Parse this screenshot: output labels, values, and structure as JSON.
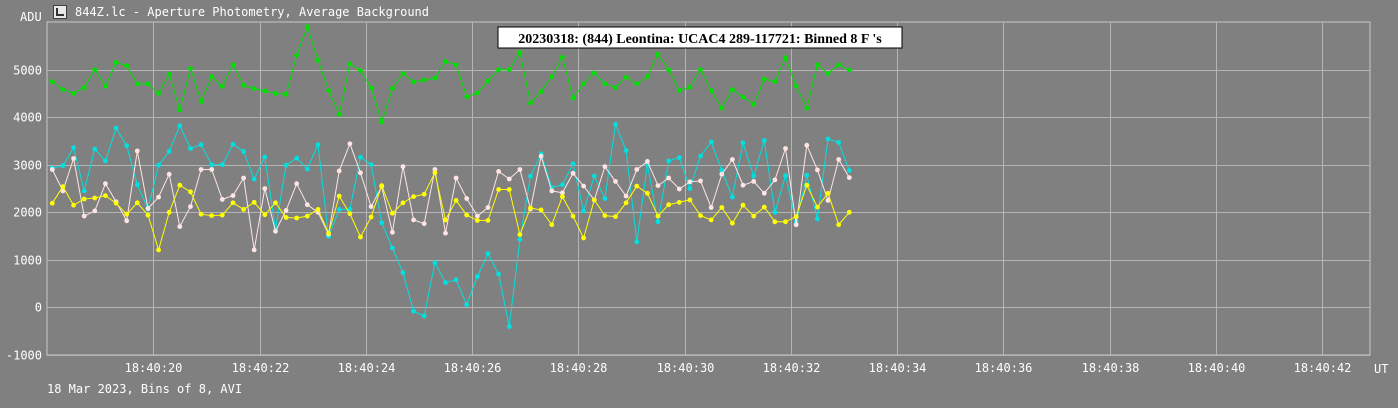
{
  "window": {
    "title": "844Z.lc - Aperture Photometry, Average Background",
    "icon": "chart-window-icon"
  },
  "footer": "18 Mar 2023, Bins of 8, AVI",
  "chart_data": {
    "type": "line",
    "title": "20230318: (844) Leontina: UCAC4 289-117721: Binned 8 F 's",
    "ylabel": "ADU",
    "xlabel": "UT",
    "ylim": [
      -1000,
      6000
    ],
    "y_ticks": [
      -1000,
      0,
      1000,
      2000,
      3000,
      4000,
      5000
    ],
    "x_ticks": [
      "18:40:20",
      "18:40:22",
      "18:40:24",
      "18:40:26",
      "18:40:28",
      "18:40:30",
      "18:40:32",
      "18:40:34",
      "18:40:36",
      "18:40:38",
      "18:40:40",
      "18:40:42"
    ],
    "x_tick_seconds": [
      20,
      22,
      24,
      26,
      28,
      30,
      32,
      34,
      36,
      38,
      40,
      42
    ],
    "xlim_seconds": [
      18.0,
      42.9
    ],
    "grid": true,
    "x_start_seconds": 18.1,
    "x_step_seconds": 0.2,
    "series": [
      {
        "color": "#00e000",
        "values": [
          4750,
          4580,
          4500,
          4620,
          5000,
          4650,
          5150,
          5080,
          4700,
          4700,
          4500,
          4900,
          4150,
          5020,
          4330,
          4850,
          4650,
          5100,
          4670,
          4600,
          4550,
          4500,
          4480,
          5300,
          5900,
          5200,
          4560,
          4060,
          5120,
          4980,
          4620,
          3900,
          4600,
          4920,
          4740,
          4780,
          4820,
          5170,
          5100,
          4430,
          4510,
          4760,
          5000,
          5000,
          5360,
          4300,
          4540,
          4850,
          5260,
          4400,
          4700,
          4930,
          4700,
          4620,
          4840,
          4700,
          4850,
          5320,
          4990,
          4560,
          4630,
          5000,
          4560,
          4190,
          4580,
          4420,
          4270,
          4800,
          4750,
          5250,
          4650,
          4190,
          5100,
          4920,
          5100,
          4990
        ]
      },
      {
        "color": "#00e0e0",
        "values": [
          2930,
          2980,
          3360,
          2450,
          3330,
          3080,
          3770,
          3400,
          2580,
          2070,
          2990,
          3280,
          3820,
          3340,
          3420,
          3000,
          3000,
          3430,
          3280,
          2700,
          3160,
          1650,
          2990,
          3140,
          2910,
          3420,
          1490,
          2060,
          2060,
          3160,
          3000,
          1780,
          1250,
          730,
          -80,
          -180,
          940,
          520,
          580,
          60,
          650,
          1130,
          700,
          -400,
          1430,
          2760,
          3230,
          2520,
          2580,
          3020,
          2030,
          2760,
          2290,
          3850,
          3300,
          1380,
          3000,
          1800,
          3080,
          3150,
          2500,
          3180,
          3480,
          2880,
          2320,
          3460,
          2760,
          3510,
          2000,
          2770,
          1800,
          2780,
          1860,
          3540,
          3470,
          2880
        ]
      },
      {
        "color": "#ffe4e4",
        "values": [
          2900,
          2450,
          3130,
          1920,
          2030,
          2600,
          2220,
          1820,
          3290,
          2080,
          2320,
          2800,
          1700,
          2120,
          2900,
          2900,
          2270,
          2350,
          2720,
          1210,
          2500,
          1600,
          2040,
          2600,
          2160,
          2000,
          1540,
          2870,
          3440,
          2830,
          2120,
          2540,
          1580,
          2960,
          1840,
          1760,
          2900,
          1560,
          2720,
          2290,
          1920,
          2100,
          2860,
          2700,
          2900,
          2070,
          3180,
          2450,
          2410,
          2820,
          2550,
          2260,
          2960,
          2650,
          2340,
          2900,
          3070,
          2560,
          2720,
          2490,
          2640,
          2660,
          2100,
          2800,
          3110,
          2570,
          2650,
          2400,
          2680,
          3340,
          1740,
          3410,
          2890,
          2250,
          3110,
          2730
        ]
      },
      {
        "color": "#ffff00",
        "values": [
          2190,
          2540,
          2150,
          2280,
          2300,
          2350,
          2190,
          1960,
          2200,
          1940,
          1210,
          2000,
          2570,
          2430,
          1960,
          1930,
          1940,
          2200,
          2060,
          2210,
          1950,
          2200,
          1890,
          1880,
          1920,
          2060,
          1560,
          2340,
          1970,
          1480,
          1900,
          2560,
          1980,
          2200,
          2330,
          2380,
          2830,
          1840,
          2250,
          1940,
          1830,
          1830,
          2480,
          2480,
          1530,
          2090,
          2050,
          1740,
          2330,
          1920,
          1460,
          2260,
          1930,
          1910,
          2200,
          2550,
          2400,
          1920,
          2160,
          2210,
          2260,
          1930,
          1840,
          2100,
          1770,
          2150,
          1920,
          2110,
          1800,
          1800,
          1910,
          2570,
          2110,
          2400,
          1740,
          2000
        ]
      }
    ]
  }
}
